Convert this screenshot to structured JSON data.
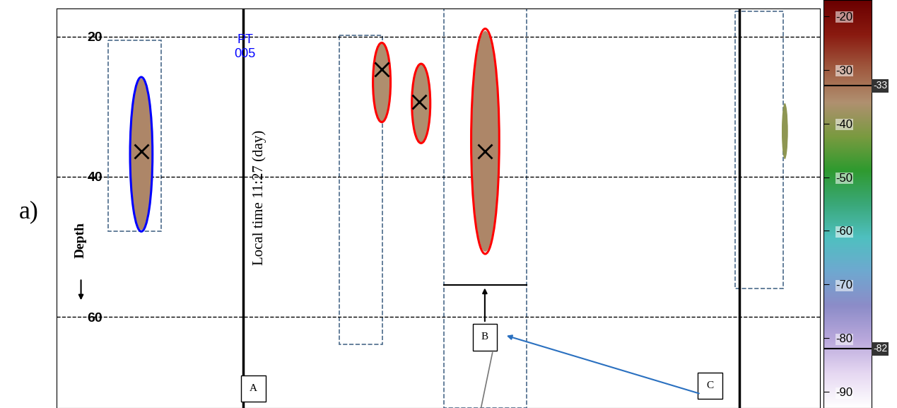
{
  "chart_data": {
    "type": "echogram",
    "label": "a)",
    "y_label": "Depth",
    "xlim": [
      0,
      100
    ],
    "ylim": [
      73,
      16
    ],
    "yticks": [
      20,
      40,
      60
    ],
    "grid": true,
    "tick_labels": "y",
    "annotations": [
      {
        "text": "PT\n005",
        "x": 24.7,
        "depth": 21.5,
        "color": "blue"
      },
      {
        "text": "Local time 11:27 (day)",
        "x": 26.6,
        "depth": 43.0,
        "color": "black"
      }
    ],
    "labels": [
      {
        "text": "A",
        "x": 25.8,
        "depth": 70.2
      },
      {
        "text": "B",
        "x": 56.1,
        "depth": 62.9
      },
      {
        "text": "C",
        "x": 85.6,
        "depth": 69.8
      }
    ],
    "events": [
      24.4,
      89.4
    ],
    "regions": [
      {
        "x_range": [
          6.8,
          13.7
        ],
        "depth_range": [
          20.5,
          47.8
        ]
      },
      {
        "x_range": [
          37.0,
          42.7
        ],
        "depth_range": [
          19.8,
          63.9
        ]
      },
      {
        "x_range": [
          50.7,
          61.6
        ],
        "depth_range": [
          16,
          73
        ],
        "boundary": 55.4
      },
      {
        "x_range": [
          88.9,
          95.2
        ],
        "depth_range": [
          16.4,
          55.9
        ]
      }
    ],
    "targets": [
      {
        "x": 11.1,
        "depth": 36.4,
        "x_range": [
          9.7,
          12.5
        ],
        "depth_range": [
          26.0,
          47.6
        ],
        "sv": -35,
        "color": "blue",
        "marker": "x"
      },
      {
        "x": 42.6,
        "depth": 24.7,
        "x_range": [
          41.5,
          43.7
        ],
        "depth_range": [
          21.0,
          32.1
        ],
        "sv": -36,
        "color": "red",
        "marker": "x"
      },
      {
        "x": 47.5,
        "depth": 29.3,
        "x_range": [
          46.6,
          48.9
        ],
        "depth_range": [
          24.0,
          35.1
        ],
        "sv": -36,
        "color": "red",
        "marker": "x"
      },
      {
        "x": 56.1,
        "depth": 36.4,
        "x_range": [
          54.4,
          57.9
        ],
        "depth_range": [
          19.2,
          50.7
        ],
        "sv": -35,
        "color": "red",
        "marker": "x"
      },
      {
        "x": 95.4,
        "depth": 33.0,
        "x_range": [
          95.0,
          95.8
        ],
        "depth_range": [
          29.5,
          37.5
        ],
        "sv": -40,
        "color": "none",
        "marker": "none"
      }
    ],
    "colorbar": {
      "range": [
        -93,
        -17
      ],
      "ticks": [
        -20,
        -30,
        -40,
        -50,
        -60,
        -70,
        -80,
        -90
      ],
      "thresholds": [
        -33,
        -82
      ]
    }
  }
}
